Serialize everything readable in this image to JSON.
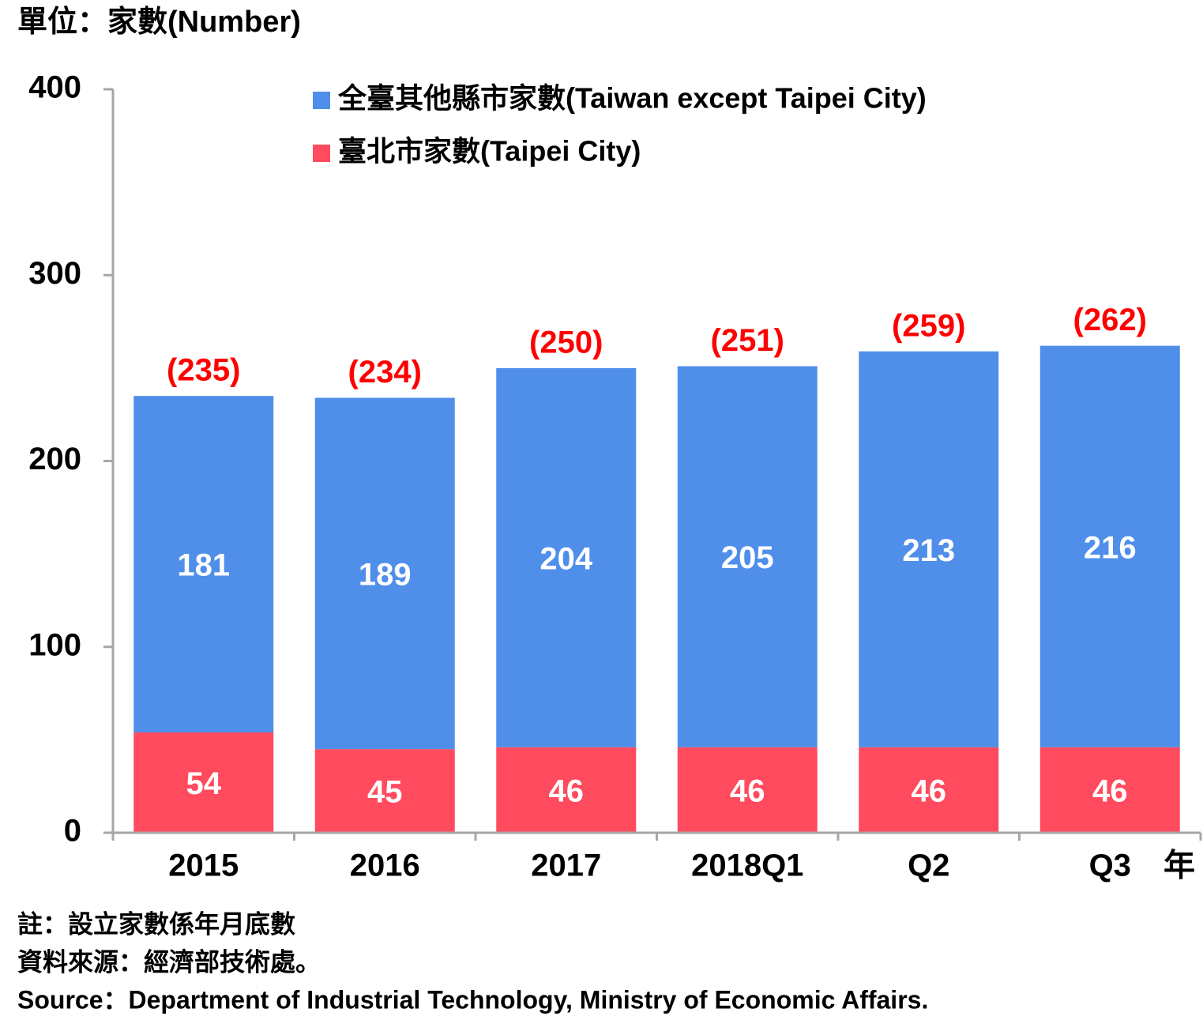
{
  "chart_data": {
    "type": "bar",
    "stacked": true,
    "unit_label": "單位：家數(Number)",
    "x_unit": "年",
    "categories": [
      "2015",
      "2016",
      "2017",
      "2018Q1",
      "Q2",
      "Q3"
    ],
    "series": [
      {
        "name": "全臺其他縣市家數(Taiwan except Taipei City)",
        "color": "#4f8fea",
        "values": [
          181,
          189,
          204,
          205,
          213,
          216
        ]
      },
      {
        "name": "臺北市家數(Taipei City)",
        "color": "#ff4b5d",
        "values": [
          54,
          45,
          46,
          46,
          46,
          46
        ]
      }
    ],
    "totals": {
      "values": [
        235,
        234,
        250,
        251,
        259,
        262
      ],
      "value_labels": [
        "(235)",
        "(234)",
        "(250)",
        "(251)",
        "(259)",
        "(262)"
      ],
      "color": "#ff0000"
    },
    "ylim": [
      0,
      400
    ],
    "yticks": [
      0,
      100,
      200,
      300,
      400
    ],
    "notes": [
      "註：設立家數係年月底數",
      "資料來源：經濟部技術處。",
      "Source：Department of Industrial Technology, Ministry of Economic Affairs."
    ]
  }
}
